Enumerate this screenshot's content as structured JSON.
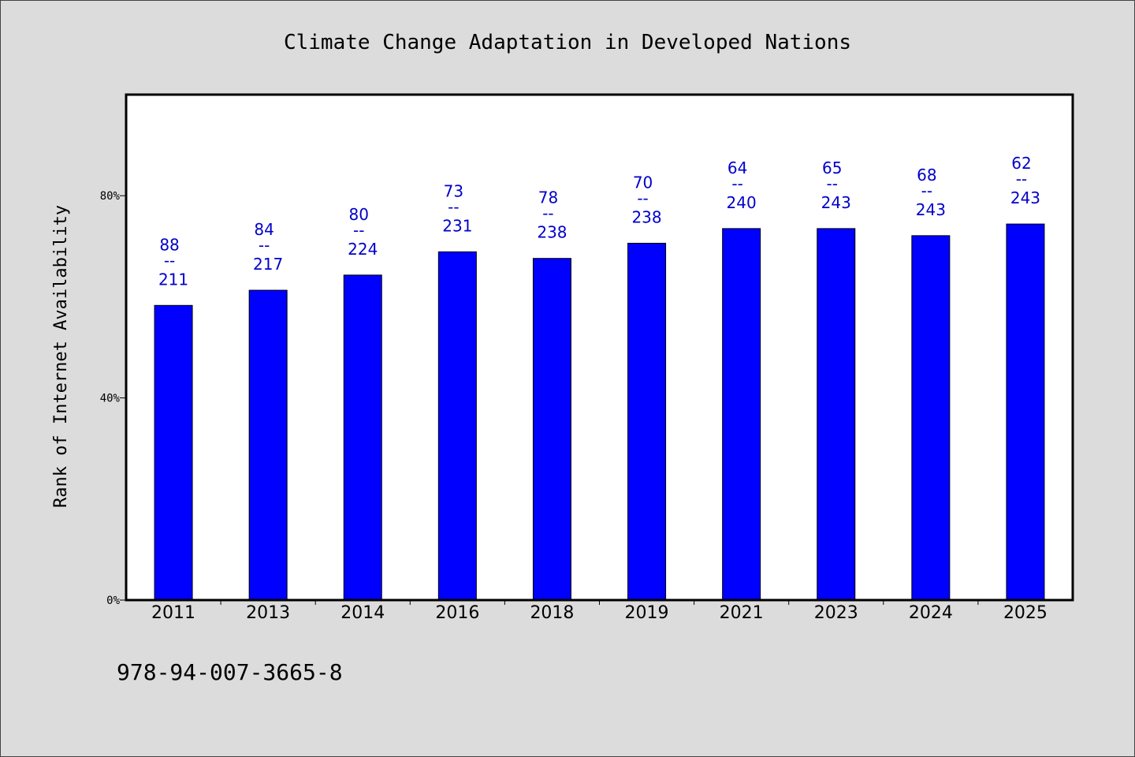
{
  "chart_data": {
    "type": "bar",
    "title": "Climate Change Adaptation in Developed Nations",
    "xlabel": "",
    "ylabel": "Rank of Internet Availability",
    "ylim": [
      0,
      100
    ],
    "yticks": [
      0,
      40,
      80
    ],
    "ytick_labels": [
      "0%",
      "40%",
      "80%"
    ],
    "categories": [
      "2011",
      "2013",
      "2014",
      "2016",
      "2018",
      "2019",
      "2021",
      "2023",
      "2024",
      "2025"
    ],
    "values": [
      58.3,
      61.3,
      64.3,
      68.9,
      67.6,
      70.6,
      73.5,
      73.5,
      72.1,
      74.4
    ],
    "labels_top": [
      "88",
      "84",
      "80",
      "73",
      "78",
      "70",
      "64",
      "65",
      "68",
      "62"
    ],
    "labels_bottom": [
      "211",
      "217",
      "224",
      "231",
      "238",
      "238",
      "240",
      "243",
      "243",
      "243"
    ],
    "label_separator": "--",
    "bar_color": "#0000ff",
    "label_color": "#0000cc",
    "grid": false
  },
  "footer": {
    "isbn": "978-94-007-3665-8"
  }
}
